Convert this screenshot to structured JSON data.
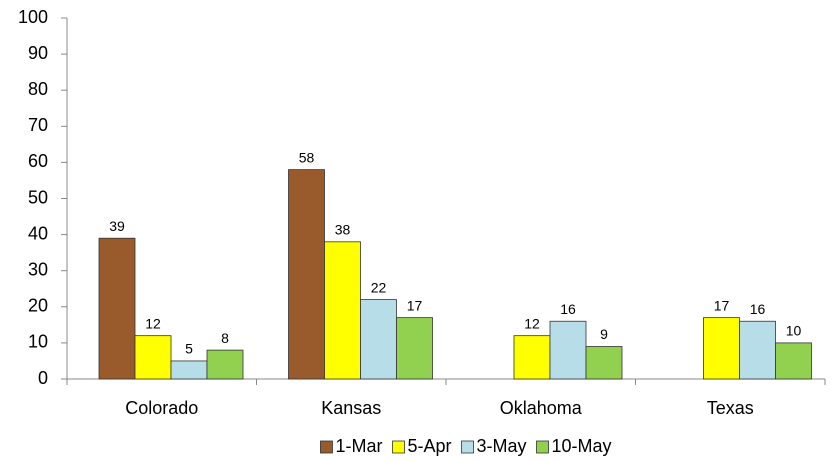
{
  "chart_data": {
    "type": "bar",
    "categories": [
      "Colorado",
      "Kansas",
      "Oklahoma",
      "Texas"
    ],
    "series": [
      {
        "name": "1-Mar",
        "color": "#9a5b2c",
        "values": [
          39,
          58,
          null,
          null
        ]
      },
      {
        "name": "5-Apr",
        "color": "#ffff00",
        "values": [
          12,
          38,
          12,
          17
        ]
      },
      {
        "name": "3-May",
        "color": "#b7dee8",
        "values": [
          5,
          22,
          16,
          16
        ]
      },
      {
        "name": "10-May",
        "color": "#92d050",
        "values": [
          8,
          17,
          9,
          10
        ]
      }
    ],
    "ylim": [
      0,
      100
    ],
    "yticks": [
      0,
      10,
      20,
      30,
      40,
      50,
      60,
      70,
      80,
      90,
      100
    ],
    "grid": false,
    "legend": "bottom"
  }
}
